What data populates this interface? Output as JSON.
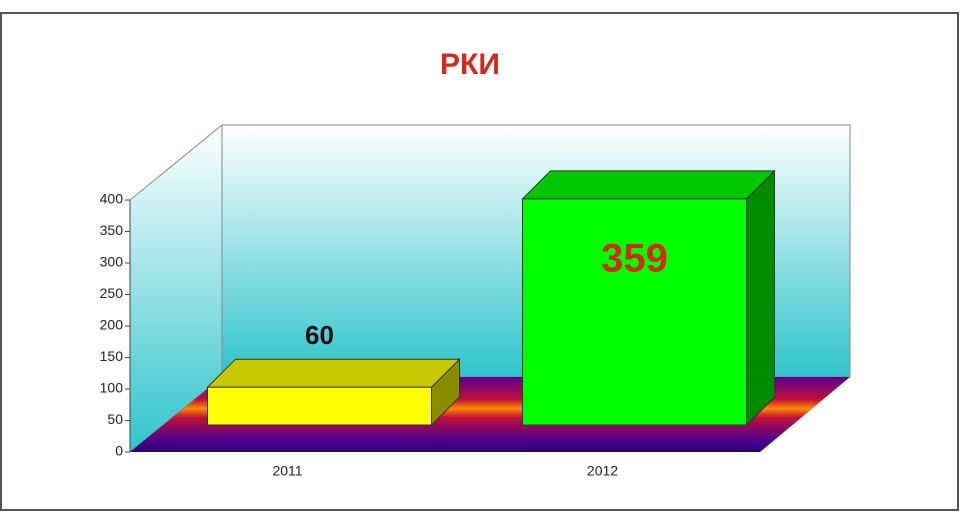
{
  "chart_data": {
    "type": "bar3d",
    "title": "РКИ",
    "categories": [
      "2011",
      "2012"
    ],
    "values": [
      60,
      359
    ],
    "colors": [
      "#ffff00",
      "#00ff00"
    ],
    "label_colors": [
      "#111111",
      "#d42a1e"
    ],
    "ylim": [
      0,
      400
    ],
    "yticks": [
      0,
      50,
      100,
      150,
      200,
      250,
      300,
      350,
      400
    ]
  }
}
